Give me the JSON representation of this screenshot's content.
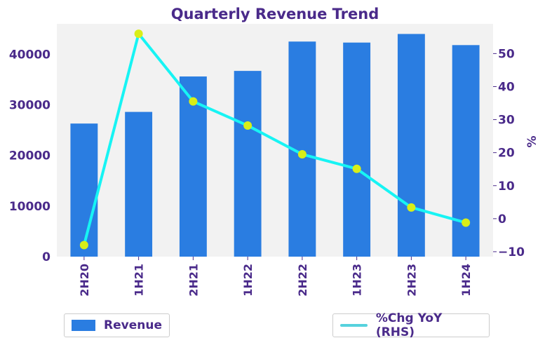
{
  "chart_data": {
    "type": "bar",
    "title": "Quarterly Revenue Trend",
    "categories": [
      "2H20",
      "1H21",
      "2H21",
      "1H22",
      "2H22",
      "1H23",
      "2H23",
      "1H24"
    ],
    "series": [
      {
        "name": "Revenue",
        "type": "bar",
        "axis": "left",
        "values": [
          26300,
          28600,
          35600,
          36700,
          42500,
          42300,
          44000,
          41800
        ]
      },
      {
        "name": "%Chg YoY (RHS)",
        "type": "line",
        "axis": "right",
        "values": [
          -8,
          56,
          35.5,
          28.2,
          19.5,
          15.1,
          3.4,
          -1.2
        ]
      }
    ],
    "left_axis": {
      "ylim": [
        0,
        46000
      ],
      "ticks": [
        0,
        10000,
        20000,
        30000,
        40000
      ]
    },
    "right_axis": {
      "ylabel": "%",
      "ylim": [
        -11.5,
        59
      ],
      "ticks": [
        -10,
        0,
        10,
        20,
        30,
        40,
        50
      ]
    },
    "legend": [
      "Revenue",
      "%Chg YoY (RHS)"
    ],
    "colors": {
      "bar": "#2a7de1",
      "line": "#17f4f4",
      "marker": "#d9ee18",
      "legend_line": "#56d2dd",
      "text": "#4a2a8a",
      "plot_bg": "#f2f2f2"
    }
  }
}
